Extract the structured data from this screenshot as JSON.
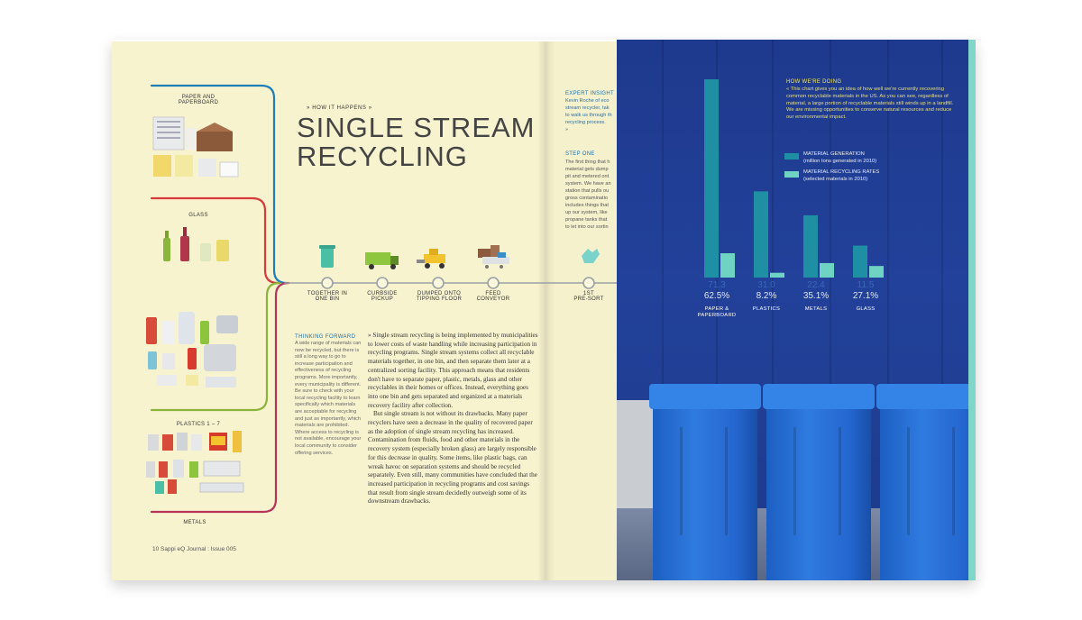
{
  "left_page": {
    "kicker": "» HOW IT HAPPENS »",
    "title_line1": "SINGLE STREAM",
    "title_line2": "RECYCLING",
    "categories": {
      "paper": "PAPER AND\nPAPERBOARD",
      "glass": "GLASS",
      "plastics": "PLASTICS 1 – 7",
      "metals": "METALS"
    },
    "steps": [
      "TOGETHER IN\nONE BIN",
      "CURBSIDE\nPICKUP",
      "DUMPED ONTO\nTIPPING FLOOR",
      "FEED\nCONVEYOR",
      "1ST\nPRE-SORT"
    ],
    "thinking_head": "THINKING FORWARD",
    "thinking_text": "A wide range of materials can now be recycled, but there is still a long way to go to increase participation and effectiveness of recycling programs. More importantly, every municipality is different. Be sure to check with your local recycling facility to learn specifically which materials are acceptable for recycling and just as importantly, which materials are prohibited. Where access to recycling is not available, encourage your local community to consider offering services.",
    "body_p1": "»   Single stream recycling is being implemented by municipalities to lower costs of waste handling while increasing participation in recycling programs. Single stream systems collect all recyclable materials together, in one bin, and then separate them later at a centralized sorting facility. This approach means that residents don't have to separate paper, plastic, metals, glass and other recyclables in their homes or offices. Instead, everything goes into one bin and gets separated and organized at a materials recovery facility after collection.",
    "body_p2": "But single stream is not without its drawbacks. Many paper recyclers have seen a decrease in the quality of recovered paper as the adoption of single stream recycling has increased. Contamination from fluids, food and other materials in the recovery system (especially broken glass) are largely responsible for this decrease in quality. Some items, like plastic bags, can wreak havoc on separation systems and should be recycled separately. Even still, many communities have concluded that the increased participation in recycling programs and cost savings that result from single stream decidedly outweigh some of its downstream drawbacks.",
    "footer": "10      Sappi eQ Journal : Issue 005"
  },
  "middle_page": {
    "expert_head": "EXPERT INSIGHT",
    "expert_lines": [
      "Kevin Roche of eco",
      "stream recycler, tak",
      "to walk us through th",
      "recycling process.",
      "»"
    ],
    "step_head": "STEP ONE",
    "step_lines": [
      "The first thing that h",
      "material gets dump",
      "pit and metered ont",
      "system. We have an",
      "station that pulls ou",
      "gross contaminatio",
      "includes things that",
      "up our system, like",
      "propane tanks that",
      "to let into our sortin"
    ]
  },
  "right_page": {
    "how_head": "HOW WE'RE DOING",
    "how_text": "«  This chart gives you an idea of how well we're currently recovering common recyclable materials in the US. As you can see, regardless of material, a large portion of recyclable materials still winds up in a landfill. We are missing opportunities to conserve natural resources and reduce our environmental impact.",
    "legend": [
      {
        "label": "MATERIAL GENERATION",
        "sub": "(million tons generated in 2010)",
        "color": "#1f8fa3"
      },
      {
        "label": "MATERIAL RECYCLING RATES",
        "sub": "(selected materials in 2010)",
        "color": "#6fd3c4"
      }
    ]
  },
  "chart_data": {
    "type": "bar",
    "categories": [
      "PAPER &\nPAPERBOARD",
      "PLASTICS",
      "METALS",
      "GLASS"
    ],
    "series": [
      {
        "name": "MATERIAL GENERATION",
        "values": [
          71.3,
          31.0,
          22.4,
          11.5
        ],
        "labels": [
          "71.3",
          "31.0",
          "22.4",
          "11.5"
        ],
        "color": "#1f8fa3"
      },
      {
        "name": "MATERIAL RECYCLING RATES",
        "values": [
          62.5,
          8.2,
          35.1,
          27.1
        ],
        "labels": [
          "62.5%",
          "8.2%",
          "35.1%",
          "27.1%"
        ],
        "color": "#6fd3c4"
      }
    ],
    "title": "",
    "xlabel": "",
    "ylabel": ""
  }
}
